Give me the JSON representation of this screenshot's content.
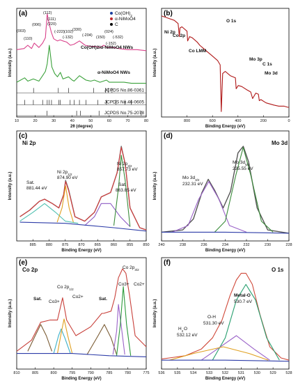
{
  "chart_data": [
    {
      "panel": "(a)",
      "type": "line",
      "xlabel": "2θ (degree)",
      "ylabel": "Intensity (a.u.)",
      "xlim": [
        10,
        80
      ],
      "xticks": [
        10,
        20,
        30,
        40,
        50,
        60,
        70,
        80
      ],
      "legend": [
        "Co(OH)2",
        "α-NiMoO4",
        "C"
      ],
      "legend_position": "top-right",
      "curve_labels": [
        "Co(OH)2/α-NiMoO4 NWs",
        "α-NiMoO4 NWs"
      ],
      "reference_labels": [
        "JCPDS No.86-0361",
        "JCPDS No.46-0605",
        "JCPDS No.75-2078"
      ],
      "peak_labels": [
        "(003)",
        "(110)",
        "(006)",
        "(112)",
        "(111)",
        "(220)",
        "(-222)",
        "(102)",
        "(-132)",
        "(330)",
        "(-204)",
        "(150)",
        "(024)",
        "(-532)",
        "(-152)"
      ],
      "series": [
        {
          "name": "Co(OH)2/α-NiMoO4 NWs",
          "color": "#d9418a",
          "x": [
            10,
            14,
            16,
            18,
            19.5,
            22,
            24,
            25.5,
            26.5,
            27.5,
            28.7,
            30,
            32,
            33.5,
            35,
            37,
            39,
            41,
            43.9,
            47,
            50,
            52.5,
            55,
            57,
            59,
            62,
            65,
            70,
            75,
            80
          ],
          "y": [
            0.62,
            0.63,
            0.66,
            0.63,
            0.68,
            0.64,
            0.68,
            0.73,
            0.95,
            0.86,
            0.78,
            0.72,
            0.7,
            0.71,
            0.7,
            0.69,
            0.66,
            0.67,
            0.7,
            0.66,
            0.65,
            0.65,
            0.64,
            0.66,
            0.64,
            0.64,
            0.63,
            0.62,
            0.62,
            0.61
          ]
        },
        {
          "name": "α-NiMoO4 NWs",
          "color": "#3aa13a",
          "x": [
            10,
            14.3,
            16,
            19,
            22,
            24,
            25.5,
            26.5,
            27.6,
            29,
            30.5,
            32,
            33.6,
            35,
            38,
            40,
            41,
            43.9,
            47.4,
            50,
            52,
            55,
            58.5,
            60,
            64,
            68,
            72,
            76,
            80
          ],
          "y": [
            0.32,
            0.36,
            0.33,
            0.35,
            0.33,
            0.38,
            0.42,
            0.49,
            0.66,
            0.46,
            0.4,
            0.37,
            0.41,
            0.35,
            0.37,
            0.34,
            0.33,
            0.38,
            0.34,
            0.33,
            0.34,
            0.32,
            0.34,
            0.32,
            0.32,
            0.32,
            0.31,
            0.31,
            0.31
          ]
        }
      ],
      "reference_sticks": [
        {
          "name": "JCPDS No.86-0361",
          "x": [
            19.1,
            32.5,
            38.0,
            51.5,
            58.0,
            59.5,
            61.5
          ]
        },
        {
          "name": "JCPDS No.46-0605",
          "x": [
            14.3,
            19.0,
            24.0,
            26.5,
            27.6,
            28.8,
            32.7,
            33.6,
            38.9,
            41.0,
            43.9,
            47.4,
            53.8,
            58.5,
            63.6,
            68.5,
            72.0
          ]
        },
        {
          "name": "JCPDS No.75-2078",
          "x": [
            26.4,
            42.4,
            44.4,
            54.5,
            77.3
          ]
        }
      ]
    },
    {
      "panel": "(b)",
      "type": "line",
      "title": "",
      "xlabel": "Binding Energy (eV)",
      "ylabel": "Intensity (a.u.)",
      "xlim": [
        1000,
        0
      ],
      "xticks": [
        800,
        600,
        400,
        200,
        0
      ],
      "annotations": [
        "Ni 2p",
        "Co 2p",
        "Co LMM",
        "O 1s",
        "Mo 3p",
        "C 1s",
        "Mo 3d"
      ],
      "series": [
        {
          "name": "",
          "color": "#b01818",
          "x": [
            1000,
            950,
            900,
            870,
            860,
            855,
            840,
            800,
            795,
            780,
            760,
            720,
            700,
            670,
            640,
            600,
            560,
            540,
            531,
            520,
            500,
            460,
            420,
            414,
            398,
            370,
            330,
            300,
            285,
            260,
            240,
            233,
            220,
            180,
            120,
            80,
            40,
            10,
            0
          ],
          "y": [
            0.93,
            0.91,
            0.89,
            0.86,
            0.74,
            0.82,
            0.83,
            0.79,
            0.7,
            0.74,
            0.73,
            0.69,
            0.66,
            0.63,
            0.6,
            0.56,
            0.52,
            0.48,
            0.05,
            0.4,
            0.42,
            0.38,
            0.36,
            0.26,
            0.29,
            0.28,
            0.25,
            0.23,
            0.17,
            0.22,
            0.21,
            0.15,
            0.16,
            0.13,
            0.11,
            0.1,
            0.1,
            0.09,
            0.09
          ]
        }
      ]
    },
    {
      "panel": "(c)",
      "type": "line",
      "title": "Ni 2p",
      "xlabel": "Binding Energy (eV)",
      "ylabel": "Intensity (a.u.)",
      "xlim": [
        890,
        850
      ],
      "xticks": [
        885,
        880,
        875,
        870,
        865,
        860,
        855,
        850
      ],
      "annotations": [
        "Sat.",
        "881.44 eV",
        "Ni 2p1/2",
        "874.90 eV",
        "Ni 2p3/2",
        "857.73 eV",
        "Sat.",
        "863.85 eV"
      ],
      "series": [
        {
          "name": "",
          "color": "#6a6a6a",
          "role": "raw",
          "x": [
            889,
            886,
            883,
            881.4,
            879,
            877,
            875.5,
            874.9,
            874,
            872,
            869,
            866,
            863.9,
            861,
            859,
            857.7,
            856.5,
            855,
            852,
            850
          ],
          "y": [
            0.22,
            0.28,
            0.36,
            0.38,
            0.34,
            0.3,
            0.42,
            0.55,
            0.47,
            0.22,
            0.18,
            0.26,
            0.4,
            0.44,
            0.62,
            0.86,
            0.7,
            0.3,
            0.12,
            0.1
          ]
        },
        {
          "name": "",
          "color": "#d83a3a",
          "role": "envelope",
          "x": [
            889,
            886,
            883,
            881.4,
            879,
            877,
            875.5,
            874.9,
            874,
            872,
            869,
            866,
            863.9,
            861,
            859,
            857.7,
            856.5,
            855,
            852,
            850
          ],
          "y": [
            0.22,
            0.28,
            0.36,
            0.38,
            0.34,
            0.3,
            0.42,
            0.54,
            0.46,
            0.22,
            0.18,
            0.26,
            0.4,
            0.44,
            0.62,
            0.85,
            0.7,
            0.3,
            0.12,
            0.1
          ]
        },
        {
          "name": "",
          "color": "#4fc0b0",
          "role": "component",
          "x": [
            889,
            885,
            881.4,
            878,
            875,
            871
          ],
          "y": [
            0.18,
            0.26,
            0.34,
            0.26,
            0.18,
            0.16
          ]
        },
        {
          "name": "",
          "color": "#e0a020",
          "role": "component",
          "x": [
            877.5,
            876,
            874.9,
            873.8,
            872.5
          ],
          "y": [
            0.17,
            0.3,
            0.5,
            0.3,
            0.17
          ]
        },
        {
          "name": "",
          "color": "#8d5cc4",
          "role": "component",
          "x": [
            869,
            866,
            863.9,
            861,
            858,
            855
          ],
          "y": [
            0.14,
            0.22,
            0.34,
            0.34,
            0.22,
            0.13
          ]
        },
        {
          "name": "",
          "color": "#3b8c3b",
          "role": "component",
          "x": [
            860,
            858.5,
            857.7,
            856.5,
            855
          ],
          "y": [
            0.14,
            0.5,
            0.78,
            0.55,
            0.13
          ]
        },
        {
          "name": "",
          "color": "#2d3ca8",
          "role": "background",
          "x": [
            889,
            875,
            860,
            850
          ],
          "y": [
            0.17,
            0.16,
            0.12,
            0.09
          ]
        }
      ]
    },
    {
      "panel": "(d)",
      "type": "line",
      "title": "Mo 3d",
      "xlabel": "Binding Energy (eV)",
      "ylabel": "Intensity (a.u.)",
      "xlim": [
        240,
        228
      ],
      "xticks": [
        240,
        238,
        236,
        234,
        232,
        230,
        228
      ],
      "annotations": [
        "Mo 3d3/2",
        "232.31 eV",
        "Mo 3d5/2",
        "235.55 eV"
      ],
      "series": [
        {
          "name": "",
          "color": "#555555",
          "role": "raw",
          "x": [
            240,
            238,
            237,
            236.2,
            235.6,
            235,
            234.2,
            233.5,
            232.8,
            232.3,
            231.8,
            231,
            230,
            228
          ],
          "y": [
            0.08,
            0.1,
            0.2,
            0.44,
            0.56,
            0.46,
            0.3,
            0.45,
            0.8,
            0.86,
            0.72,
            0.3,
            0.1,
            0.07
          ]
        },
        {
          "name": "",
          "color": "#9a62c8",
          "role": "component",
          "x": [
            239,
            237.5,
            236.5,
            235.55,
            234.6,
            233.6,
            232
          ],
          "y": [
            0.08,
            0.14,
            0.38,
            0.54,
            0.38,
            0.14,
            0.08
          ]
        },
        {
          "name": "",
          "color": "#3b8c3b",
          "role": "component",
          "x": [
            235,
            234,
            233,
            232.31,
            231.6,
            230.6,
            229.5
          ],
          "y": [
            0.08,
            0.18,
            0.6,
            0.85,
            0.6,
            0.18,
            0.08
          ]
        },
        {
          "name": "",
          "color": "#2d3ca8",
          "role": "background",
          "x": [
            240,
            234,
            228
          ],
          "y": [
            0.08,
            0.08,
            0.07
          ]
        }
      ]
    },
    {
      "panel": "(e)",
      "type": "line",
      "title": "Co 2p",
      "xlabel": "Binding Energy (eV)",
      "ylabel": "Intensity (a.u.)",
      "xlim": [
        810,
        775
      ],
      "xticks": [
        810,
        805,
        800,
        795,
        790,
        785,
        780,
        775
      ],
      "annotations": [
        "Co 2p3/2",
        "Co 2p1/2",
        "Sat.",
        "Sat.",
        "Co3+",
        "Co2+",
        "Co3+",
        "Co2+"
      ],
      "series": [
        {
          "name": "",
          "color": "#c8403a",
          "role": "envelope",
          "x": [
            810,
            806,
            803.5,
            801,
            799,
            797.6,
            796.5,
            794,
            790,
            787,
            786.5,
            784.5,
            783.5,
            782.5,
            781.4,
            780.5,
            779.5,
            778,
            775
          ],
          "y": [
            0.16,
            0.26,
            0.42,
            0.44,
            0.44,
            0.64,
            0.44,
            0.3,
            0.38,
            0.5,
            0.5,
            0.52,
            0.64,
            0.82,
            0.9,
            0.86,
            0.66,
            0.3,
            0.2
          ]
        },
        {
          "name": "",
          "color": "#7a5b33",
          "role": "component",
          "x": [
            807,
            805,
            803.5,
            802,
            800.5
          ],
          "y": [
            0.16,
            0.3,
            0.4,
            0.3,
            0.16
          ]
        },
        {
          "name": "",
          "color": "#3bb0c8",
          "role": "component",
          "x": [
            800,
            798.7,
            798,
            797,
            795.5
          ],
          "y": [
            0.14,
            0.3,
            0.36,
            0.28,
            0.14
          ]
        },
        {
          "name": "",
          "color": "#e0a020",
          "role": "component",
          "x": [
            799,
            798,
            797.2,
            796.2,
            795
          ],
          "y": [
            0.14,
            0.32,
            0.45,
            0.3,
            0.14
          ]
        },
        {
          "name": "",
          "color": "#7a5b33",
          "role": "component",
          "x": [
            791,
            788,
            786.3,
            784.5,
            783
          ],
          "y": [
            0.13,
            0.3,
            0.4,
            0.28,
            0.13
          ]
        },
        {
          "name": "",
          "color": "#9a62c8",
          "role": "component",
          "x": [
            784,
            783,
            782.5,
            781.8,
            780.8
          ],
          "y": [
            0.13,
            0.34,
            0.58,
            0.4,
            0.13
          ]
        },
        {
          "name": "",
          "color": "#2b9a3a",
          "role": "component",
          "x": [
            783,
            782,
            781.2,
            780.3,
            779.2
          ],
          "y": [
            0.12,
            0.4,
            0.74,
            0.4,
            0.12
          ]
        },
        {
          "name": "",
          "color": "#2d3ca8",
          "role": "background",
          "x": [
            810,
            795,
            785,
            775
          ],
          "y": [
            0.14,
            0.14,
            0.12,
            0.11
          ]
        }
      ]
    },
    {
      "panel": "(f)",
      "type": "line",
      "title": "O 1s",
      "xlabel": "Binding Energy (eV)",
      "ylabel": "Intensity (a.u.)",
      "xlim": [
        536,
        528
      ],
      "xticks": [
        536,
        535,
        534,
        533,
        532,
        531,
        530,
        529,
        528
      ],
      "annotations": [
        "Metal-O",
        "530.7 eV",
        "O-H",
        "531.30 eV",
        "H2O",
        "532.12 eV"
      ],
      "series": [
        {
          "name": "",
          "color": "#d0493a",
          "role": "envelope",
          "x": [
            536,
            534.5,
            533.5,
            532.8,
            532.2,
            531.7,
            531.3,
            531,
            530.7,
            530.3,
            529.8,
            529.2,
            528.5,
            528
          ],
          "y": [
            0.09,
            0.12,
            0.18,
            0.28,
            0.44,
            0.66,
            0.8,
            0.86,
            0.86,
            0.76,
            0.48,
            0.2,
            0.1,
            0.08
          ]
        },
        {
          "name": "",
          "color": "#2aa070",
          "role": "component",
          "x": [
            532.8,
            532,
            531.3,
            530.7,
            530.1,
            529.4,
            528.6
          ],
          "y": [
            0.08,
            0.28,
            0.62,
            0.76,
            0.62,
            0.28,
            0.08
          ]
        },
        {
          "name": "",
          "color": "#9a62c8",
          "role": "component",
          "x": [
            533.5,
            532.5,
            531.3,
            530.2,
            529.2
          ],
          "y": [
            0.08,
            0.18,
            0.3,
            0.18,
            0.08
          ]
        },
        {
          "name": "",
          "color": "#e0a020",
          "role": "component",
          "x": [
            535.5,
            534,
            532.12,
            530.5,
            529.3
          ],
          "y": [
            0.08,
            0.14,
            0.2,
            0.14,
            0.08
          ]
        },
        {
          "name": "",
          "color": "#2d3ca8",
          "role": "background",
          "x": [
            536,
            532,
            528
          ],
          "y": [
            0.08,
            0.08,
            0.07
          ]
        }
      ]
    }
  ]
}
